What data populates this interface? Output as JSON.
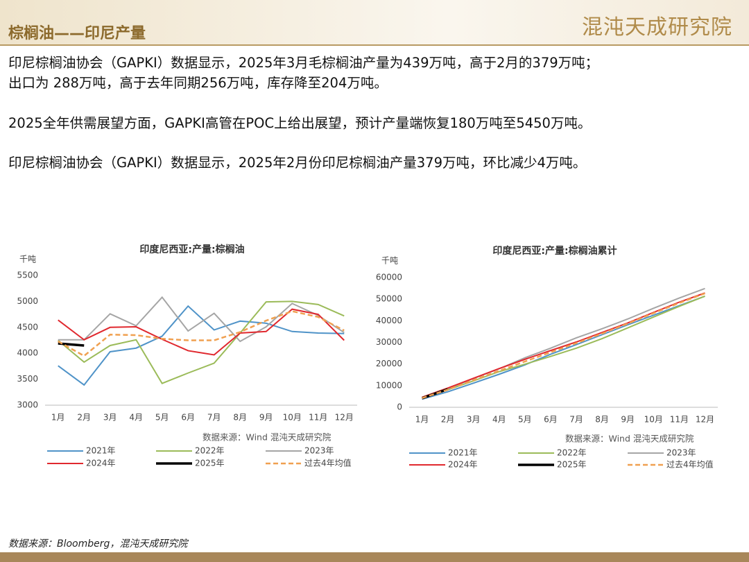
{
  "header": {
    "title": "棕榈油——印尼产量",
    "logo": "混沌天成研究院"
  },
  "text_lines": [
    "印尼棕榈油协会（GAPKI）数据显示，2025年3月毛棕榈油产量为439万吨，高于2月的379万吨；",
    "出口为 288万吨，高于去年同期256万吨，库存降至204万吨。",
    "2025全年供需展望方面，GAPKI高管在POC上给出展望，预计产量端恢复180万吨至5450万吨。",
    "印尼棕榈油协会（GAPKI）数据显示，2025年2月份印尼棕榈油产量379万吨，环比减少4万吨。"
  ],
  "footer": "数据来源：Bloomberg，混沌天成研究院",
  "chart_data": [
    {
      "type": "line",
      "title": "印度尼西亚:产量:棕榈油",
      "y_unit": "千吨",
      "source": "数据来源：Wind  混沌天成研究院",
      "categories": [
        "1月",
        "2月",
        "3月",
        "4月",
        "5月",
        "6月",
        "7月",
        "8月",
        "9月",
        "10月",
        "11月",
        "12月"
      ],
      "ylim": [
        3000,
        5500
      ],
      "yticks": [
        3000,
        3500,
        4000,
        4500,
        5000,
        5500
      ],
      "series": [
        {
          "name": "2021年",
          "color": "#4f93c8",
          "values": [
            3760,
            3390,
            4030,
            4100,
            4330,
            4910,
            4450,
            4620,
            4580,
            4420,
            4390,
            4380
          ]
        },
        {
          "name": "2022年",
          "color": "#9bbb59",
          "values": [
            4250,
            3830,
            4150,
            4260,
            3420,
            3620,
            3810,
            4390,
            4990,
            5000,
            4940,
            4720
          ]
        },
        {
          "name": "2023年",
          "color": "#a5a5a5",
          "values": [
            4260,
            4260,
            4760,
            4530,
            5080,
            4430,
            4770,
            4230,
            4510,
            4960,
            4730,
            4400
          ]
        },
        {
          "name": "2024年",
          "color": "#e0282e",
          "values": [
            4640,
            4260,
            4500,
            4510,
            4270,
            4050,
            3970,
            4390,
            4420,
            4850,
            4750,
            4250
          ]
        },
        {
          "name": "2025年",
          "color": "#000000",
          "values": [
            4190,
            4150,
            null,
            null,
            null,
            null,
            null,
            null,
            null,
            null,
            null,
            null
          ]
        },
        {
          "name": "过去4年均值",
          "color": "#f0a050",
          "style": "dashed",
          "values": [
            4230,
            3950,
            4360,
            4350,
            4280,
            4250,
            4250,
            4410,
            4630,
            4810,
            4700,
            4440
          ]
        }
      ]
    },
    {
      "type": "line",
      "title": "印度尼西亚:产量:棕榈油累计",
      "y_unit": "千吨",
      "source": "数据来源：Wind  混沌天成研究院",
      "categories": [
        "1月",
        "2月",
        "3月",
        "4月",
        "5月",
        "6月",
        "7月",
        "8月",
        "9月",
        "10月",
        "11月",
        "12月"
      ],
      "ylim": [
        0,
        60000
      ],
      "yticks": [
        0,
        10000,
        20000,
        30000,
        40000,
        50000,
        60000
      ],
      "series": [
        {
          "name": "2021年",
          "color": "#4f93c8",
          "values": [
            3760,
            7150,
            11180,
            15280,
            19610,
            24520,
            28970,
            33590,
            38170,
            42590,
            46980,
            51360
          ]
        },
        {
          "name": "2022年",
          "color": "#9bbb59",
          "values": [
            4250,
            8080,
            12230,
            16490,
            19910,
            23530,
            27340,
            31730,
            36720,
            41720,
            46660,
            51380
          ]
        },
        {
          "name": "2023年",
          "color": "#a5a5a5",
          "values": [
            4260,
            8520,
            13280,
            17810,
            22890,
            27320,
            32090,
            36320,
            40830,
            45790,
            50520,
            54920
          ]
        },
        {
          "name": "2024年",
          "color": "#e0282e",
          "values": [
            4640,
            8900,
            13400,
            17910,
            22180,
            26230,
            30200,
            34590,
            39010,
            43860,
            48610,
            52860
          ]
        },
        {
          "name": "2025年",
          "color": "#000000",
          "values": [
            4190,
            8340,
            null,
            null,
            null,
            null,
            null,
            null,
            null,
            null,
            null,
            null
          ]
        },
        {
          "name": "过去4年均值",
          "color": "#f0a050",
          "style": "dashed",
          "values": [
            4230,
            8180,
            12540,
            16890,
            21170,
            25420,
            29670,
            34080,
            38710,
            43520,
            48220,
            52660
          ]
        }
      ]
    }
  ]
}
